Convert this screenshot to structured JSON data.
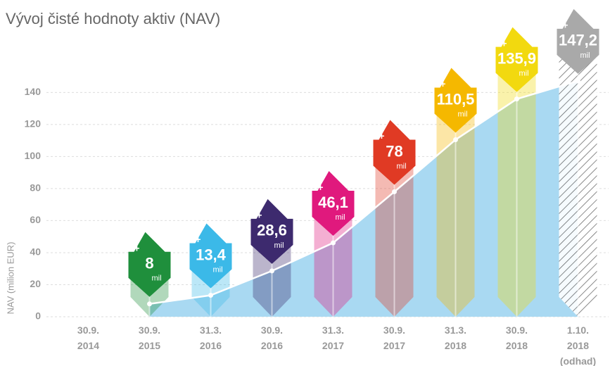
{
  "chart_data": {
    "type": "badge-area",
    "title": "Vývoj čisté hodnoty aktiv (NAV)",
    "y_label": "NAV (milion EUR)",
    "categories": [
      "30.9. 2014",
      "30.9. 2015",
      "31.3. 2016",
      "30.9. 2016",
      "31.3. 2017",
      "30.9. 2017",
      "31.3. 2018",
      "30.9. 2018",
      "1.10. 2018 (odhad)"
    ],
    "values": [
      null,
      8,
      13.4,
      28.6,
      46.1,
      78,
      110.5,
      135.9,
      147.2
    ],
    "value_labels": [
      null,
      "8",
      "13,4",
      "28,6",
      "46,1",
      "78",
      "110,5",
      "135,9",
      "147,2"
    ],
    "unit": "mil",
    "colors": [
      null,
      "#1f8f3c",
      "#3bb9e8",
      "#3d2a6e",
      "#e0197d",
      "#e03a24",
      "#f5b800",
      "#f2d90f",
      "#a9a9a9"
    ],
    "hatched": [
      false,
      false,
      false,
      false,
      false,
      false,
      false,
      false,
      true
    ],
    "area_color": "#a9d9f2",
    "ylim": [
      0,
      152
    ],
    "yticks": [
      0,
      20,
      40,
      60,
      80,
      100,
      120,
      140
    ],
    "grid": true
  }
}
